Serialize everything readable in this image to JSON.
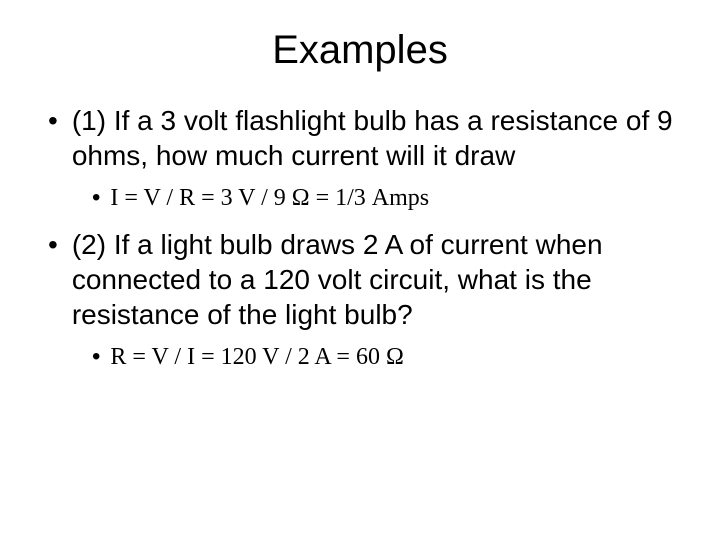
{
  "title": "Examples",
  "items": [
    {
      "level": 1,
      "text": "(1) If a 3 volt flashlight bulb has a resistance of 9 ohms, how much current will it draw"
    },
    {
      "level": 2,
      "text": "I = V / R =  3 V / 9 Ω  = 1/3  Amps"
    },
    {
      "level": 1,
      "text": "(2) If a light bulb draws 2 A of current when connected to a 120 volt circuit, what is the resistance of the light bulb?"
    },
    {
      "level": 2,
      "text": "R = V / I = 120 V / 2 A = 60 Ω"
    }
  ],
  "colors": {
    "background": "#ffffff",
    "text": "#000000"
  },
  "typography": {
    "title_fontsize": 40,
    "l1_fontsize": 28,
    "l2_fontsize": 24,
    "title_font": "Arial",
    "l1_font": "Arial",
    "l2_font": "Times New Roman"
  }
}
